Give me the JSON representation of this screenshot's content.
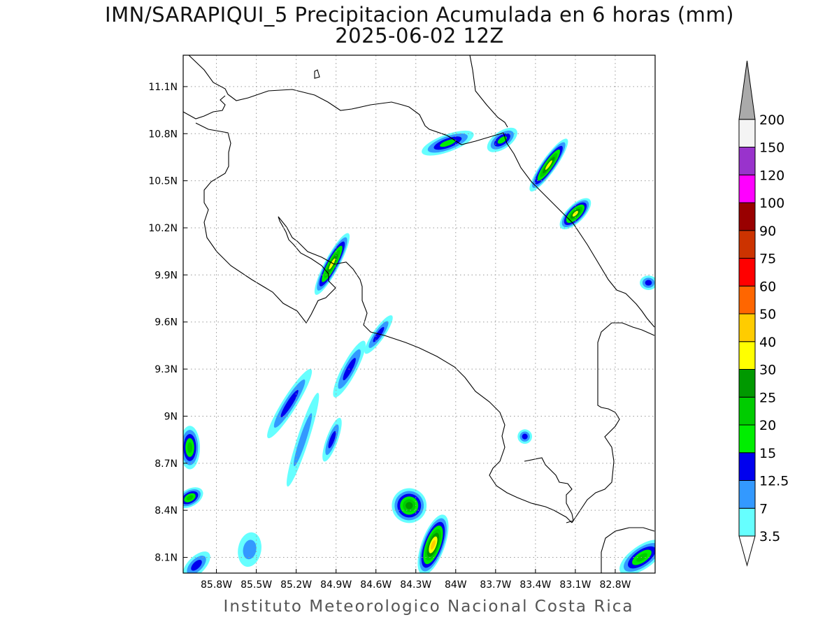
{
  "title": "IMN/SARAPIQUI_5 Precipitacion Acumulada en 6 horas (mm)",
  "subtitle": "2025-06-02 12Z",
  "footer": "Instituto Meteorologico Nacional Costa Rica",
  "map": {
    "lon_range": [
      -86.05,
      -82.5
    ],
    "lat_range": [
      8.0,
      11.3
    ],
    "lon_ticks": [
      {
        "value": -85.8,
        "label": "85.8W"
      },
      {
        "value": -85.5,
        "label": "85.5W"
      },
      {
        "value": -85.2,
        "label": "85.2W"
      },
      {
        "value": -84.9,
        "label": "84.9W"
      },
      {
        "value": -84.6,
        "label": "84.6W"
      },
      {
        "value": -84.3,
        "label": "84.3W"
      },
      {
        "value": -84.0,
        "label": "84W"
      },
      {
        "value": -83.7,
        "label": "83.7W"
      },
      {
        "value": -83.4,
        "label": "83.4W"
      },
      {
        "value": -83.1,
        "label": "83.1W"
      },
      {
        "value": -82.8,
        "label": "82.8W"
      }
    ],
    "lat_ticks": [
      {
        "value": 11.1,
        "label": "11.1N"
      },
      {
        "value": 10.8,
        "label": "10.8N"
      },
      {
        "value": 10.5,
        "label": "10.5N"
      },
      {
        "value": 10.2,
        "label": "10.2N"
      },
      {
        "value": 9.9,
        "label": "9.9N"
      },
      {
        "value": 9.6,
        "label": "9.6N"
      },
      {
        "value": 9.3,
        "label": "9.3N"
      },
      {
        "value": 9.0,
        "label": "9N"
      },
      {
        "value": 8.7,
        "label": "8.7N"
      },
      {
        "value": 8.4,
        "label": "8.4N"
      },
      {
        "value": 8.1,
        "label": "8.1N"
      }
    ],
    "gridlines": "dotted"
  },
  "colorbar": {
    "levels": [
      {
        "label": "3.5",
        "color": "#66ffff"
      },
      {
        "label": "7",
        "color": "#3399ff"
      },
      {
        "label": "12.5",
        "color": "#0000ee"
      },
      {
        "label": "15",
        "color": "#00ee00"
      },
      {
        "label": "20",
        "color": "#00cc00"
      },
      {
        "label": "25",
        "color": "#009900"
      },
      {
        "label": "30",
        "color": "#ffff00"
      },
      {
        "label": "40",
        "color": "#ffcc00"
      },
      {
        "label": "50",
        "color": "#ff6600"
      },
      {
        "label": "60",
        "color": "#ff0000"
      },
      {
        "label": "75",
        "color": "#cc3300"
      },
      {
        "label": "90",
        "color": "#990000"
      },
      {
        "label": "100",
        "color": "#ff00ff"
      },
      {
        "label": "120",
        "color": "#9933cc"
      },
      {
        "label": "150",
        "color": "#f4f4f4"
      },
      {
        "label": "200",
        "color": "#aaaaaa"
      }
    ]
  },
  "precip_cells": [
    {
      "lon": -84.06,
      "lat": 10.74,
      "lon_len": 0.19,
      "lat_len": 0.06,
      "angle": -20,
      "max": 3
    },
    {
      "lon": -83.65,
      "lat": 10.76,
      "lon_len": 0.12,
      "lat_len": 0.06,
      "angle": -35,
      "max": 3
    },
    {
      "lon": -83.3,
      "lat": 10.6,
      "lon_len": 0.22,
      "lat_len": 0.05,
      "angle": -55,
      "max": 6
    },
    {
      "lon": -83.1,
      "lat": 10.29,
      "lon_len": 0.14,
      "lat_len": 0.06,
      "angle": -45,
      "max": 6
    },
    {
      "lon": -82.55,
      "lat": 9.85,
      "lon_len": 0.06,
      "lat_len": 0.05,
      "angle": 0,
      "max": 2
    },
    {
      "lon": -84.93,
      "lat": 9.97,
      "lon_len": 0.24,
      "lat_len": 0.05,
      "angle": -62,
      "max": 6
    },
    {
      "lon": -85.15,
      "lat": 8.85,
      "lon_len": 0.34,
      "lat_len": 0.04,
      "angle": -72,
      "max": 1
    },
    {
      "lon": -85.25,
      "lat": 9.08,
      "lon_len": 0.28,
      "lat_len": 0.05,
      "angle": -58,
      "max": 2
    },
    {
      "lon": -84.93,
      "lat": 8.85,
      "lon_len": 0.16,
      "lat_len": 0.04,
      "angle": -70,
      "max": 2
    },
    {
      "lon": -84.8,
      "lat": 9.3,
      "lon_len": 0.22,
      "lat_len": 0.05,
      "angle": -62,
      "max": 2
    },
    {
      "lon": -84.58,
      "lat": 9.52,
      "lon_len": 0.16,
      "lat_len": 0.04,
      "angle": -55,
      "max": 2
    },
    {
      "lon": -84.35,
      "lat": 8.43,
      "lon_len": 0.12,
      "lat_len": 0.12,
      "angle": -60,
      "max": 5
    },
    {
      "lon": -84.17,
      "lat": 8.18,
      "lon_len": 0.22,
      "lat_len": 0.08,
      "angle": -70,
      "max": 7
    },
    {
      "lon": -86.0,
      "lat": 8.8,
      "lon_len": 0.07,
      "lat_len": 0.15,
      "angle": 0,
      "max": 4
    },
    {
      "lon": -86.0,
      "lat": 8.48,
      "lon_len": 0.1,
      "lat_len": 0.06,
      "angle": -30,
      "max": 4
    },
    {
      "lon": -82.6,
      "lat": 8.1,
      "lon_len": 0.18,
      "lat_len": 0.08,
      "angle": -35,
      "max": 4
    },
    {
      "lon": -83.48,
      "lat": 8.87,
      "lon_len": 0.05,
      "lat_len": 0.05,
      "angle": 0,
      "max": 2
    },
    {
      "lon": -85.55,
      "lat": 8.15,
      "lon_len": 0.12,
      "lat_len": 0.08,
      "angle": -80,
      "max": 1
    },
    {
      "lon": -85.95,
      "lat": 8.05,
      "lon_len": 0.12,
      "lat_len": 0.06,
      "angle": -45,
      "max": 2
    }
  ]
}
